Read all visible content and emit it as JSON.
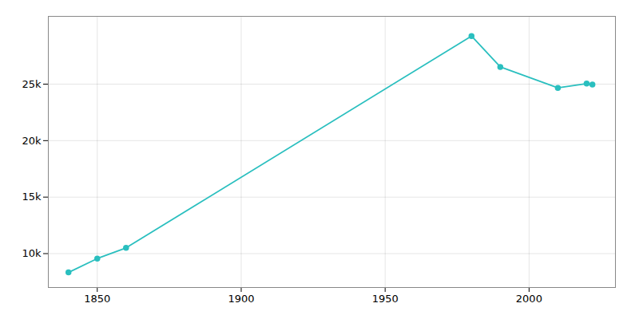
{
  "chart_data": {
    "type": "line",
    "x": [
      1840,
      1850,
      1860,
      1980,
      1990,
      2010,
      2020,
      2022
    ],
    "values": [
      8333,
      9563,
      10508,
      29259,
      26521,
      24672,
      25047,
      24969
    ],
    "color": "#2abfbf",
    "marker": "circle",
    "xlim": [
      1833,
      2030
    ],
    "ylim": [
      7000,
      31000
    ],
    "xticks": [
      1850,
      1900,
      1950,
      2000
    ],
    "yticks": [
      {
        "value": 10000,
        "label": "10k"
      },
      {
        "value": 15000,
        "label": "15k"
      },
      {
        "value": 20000,
        "label": "20k"
      },
      {
        "value": 25000,
        "label": "25k"
      }
    ],
    "grid": true
  }
}
